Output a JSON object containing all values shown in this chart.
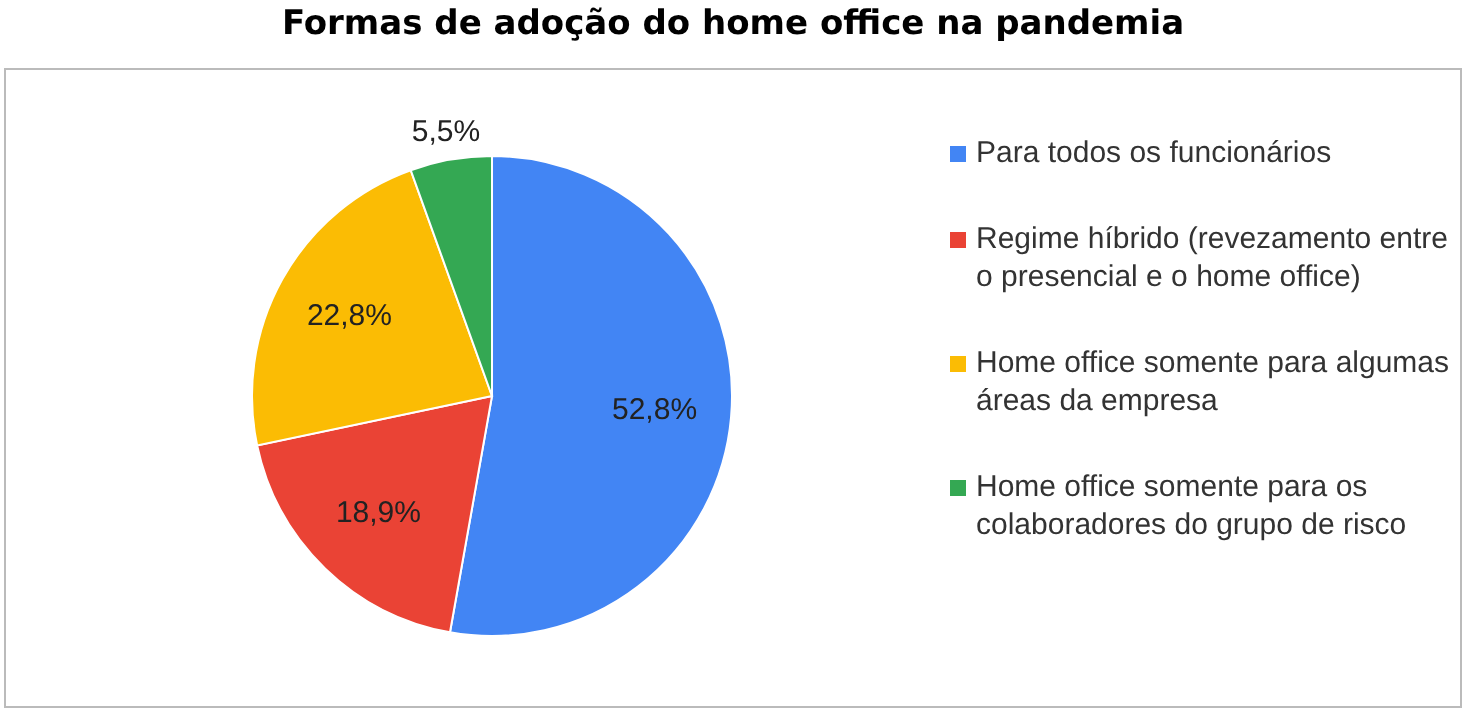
{
  "chart_data": {
    "type": "pie",
    "title": "Formas de adoção do home office na pandemia",
    "categories": [
      "Para todos os funcionários",
      "Regime híbrido (revezamento entre o presencial e o home office)",
      "Home office somente para algumas áreas da empresa",
      "Home office somente para os colaboradores do grupo de risco"
    ],
    "values": [
      52.8,
      18.9,
      22.8,
      5.5
    ],
    "colors": [
      "#4285f4",
      "#ea4335",
      "#fbbc04",
      "#34a853"
    ],
    "value_labels": [
      "52,8%",
      "18,9%",
      "22,8%",
      "5,5%"
    ],
    "legend": "right"
  }
}
